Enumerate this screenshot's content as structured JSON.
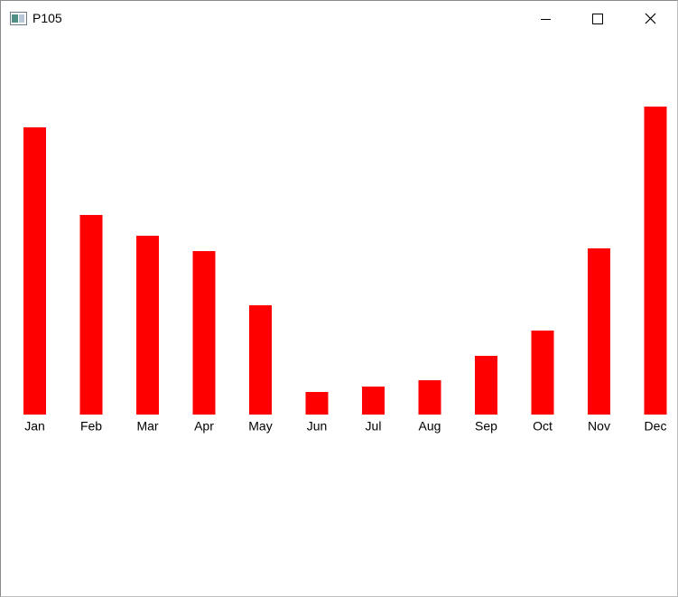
{
  "window": {
    "title": "P105"
  },
  "chart_data": {
    "type": "bar",
    "categories": [
      "Jan",
      "Feb",
      "Mar",
      "Apr",
      "May",
      "Jun",
      "Jul",
      "Aug",
      "Sep",
      "Oct",
      "Nov",
      "Dec"
    ],
    "values": [
      318,
      221,
      198,
      181,
      121,
      25,
      31,
      38,
      65,
      93,
      184,
      341
    ],
    "color": "#ff0000"
  }
}
